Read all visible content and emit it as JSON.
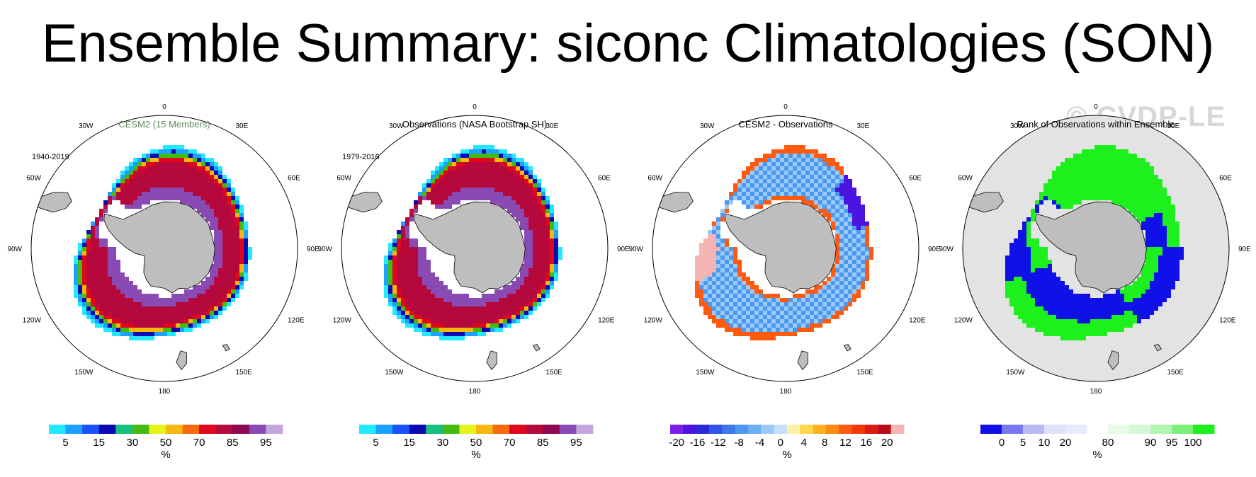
{
  "title": "Ensemble Summary: siconc Climatologies (SON)",
  "watermark": "© CVDP-LE",
  "colors": {
    "land": "#bebebe",
    "rank_background": "#e3e3e3",
    "subtitle_green": "#5d8a5d"
  },
  "chart_data": [
    {
      "type": "heatmap",
      "title": "CESM2 (15 Members)",
      "title_color": "#5d8a5d",
      "period": "1940-2019",
      "projection": "south-polar-stereographic",
      "longitude_labels": [
        "0",
        "30E",
        "60E",
        "90E",
        "120E",
        "150E",
        "180",
        "150W",
        "120W",
        "90W",
        "60W",
        "30W"
      ],
      "pattern": "concentration",
      "colorbar": {
        "colors": [
          "#22e9ff",
          "#1ba1ff",
          "#1a52ff",
          "#0a0ab2",
          "#17c07e",
          "#44bb10",
          "#e8f31a",
          "#f7b80d",
          "#f76a0d",
          "#e0061b",
          "#b5083d",
          "#8b0a52",
          "#8a4ab4",
          "#c4a6dc"
        ],
        "tick_labels": [
          "5",
          "15",
          "30",
          "50",
          "70",
          "85",
          "95"
        ],
        "units": "%"
      }
    },
    {
      "type": "heatmap",
      "title": "Observations (NASA Bootstrap SH)",
      "title_color": "#000000",
      "period": "1979-2016",
      "projection": "south-polar-stereographic",
      "longitude_labels": [
        "0",
        "30E",
        "60E",
        "90E",
        "120E",
        "150E",
        "180",
        "150W",
        "120W",
        "90W",
        "60W",
        "30W"
      ],
      "pattern": "concentration",
      "colorbar": {
        "colors": [
          "#22e9ff",
          "#1ba1ff",
          "#1a52ff",
          "#0a0ab2",
          "#17c07e",
          "#44bb10",
          "#e8f31a",
          "#f7b80d",
          "#f76a0d",
          "#e0061b",
          "#b5083d",
          "#8b0a52",
          "#8a4ab4",
          "#c4a6dc"
        ],
        "tick_labels": [
          "5",
          "15",
          "30",
          "50",
          "70",
          "85",
          "95"
        ],
        "units": "%"
      }
    },
    {
      "type": "heatmap",
      "title": "CESM2 - Observations",
      "title_color": "#000000",
      "period": "",
      "projection": "south-polar-stereographic",
      "longitude_labels": [
        "0",
        "30E",
        "60E",
        "90E",
        "120E",
        "150E",
        "180",
        "150W",
        "120W",
        "90W",
        "60W",
        "30W"
      ],
      "pattern": "difference",
      "colorbar": {
        "colors": [
          "#7b1ee6",
          "#4b14e0",
          "#2b2bd6",
          "#3352e8",
          "#3a78ec",
          "#4a98f0",
          "#6cb0f4",
          "#9ccaf8",
          "#c6e0fa",
          "#fff0a8",
          "#ffd84a",
          "#ffb21e",
          "#ff8a14",
          "#ff5a0e",
          "#f03a0a",
          "#d81c10",
          "#b80d18",
          "#f5b5b5"
        ],
        "tick_labels": [
          "-20",
          "-16",
          "-12",
          "-8",
          "-4",
          "0",
          "4",
          "8",
          "12",
          "16",
          "20"
        ],
        "units": "%"
      }
    },
    {
      "type": "heatmap",
      "title": "Rank of Observations within Ensemble",
      "title_color": "#000000",
      "period": "",
      "projection": "south-polar-stereographic",
      "longitude_labels": [
        "0",
        "30E",
        "60E",
        "90E",
        "120E",
        "150E",
        "180",
        "150W",
        "120W",
        "90W",
        "60W",
        "30W"
      ],
      "pattern": "rank",
      "colorbar": {
        "colors": [
          "#1010e8",
          "#7878f0",
          "#b9b9f6",
          "#e1e1fa",
          "#e9e9fc",
          "#ffffff",
          "#e6fbe6",
          "#d6f8d6",
          "#b2f5b2",
          "#7bf17b",
          "#1df01d"
        ],
        "tick_labels": [
          "0",
          "5",
          "10",
          "20",
          "80",
          "90",
          "95",
          "100"
        ],
        "units": "%"
      }
    }
  ]
}
